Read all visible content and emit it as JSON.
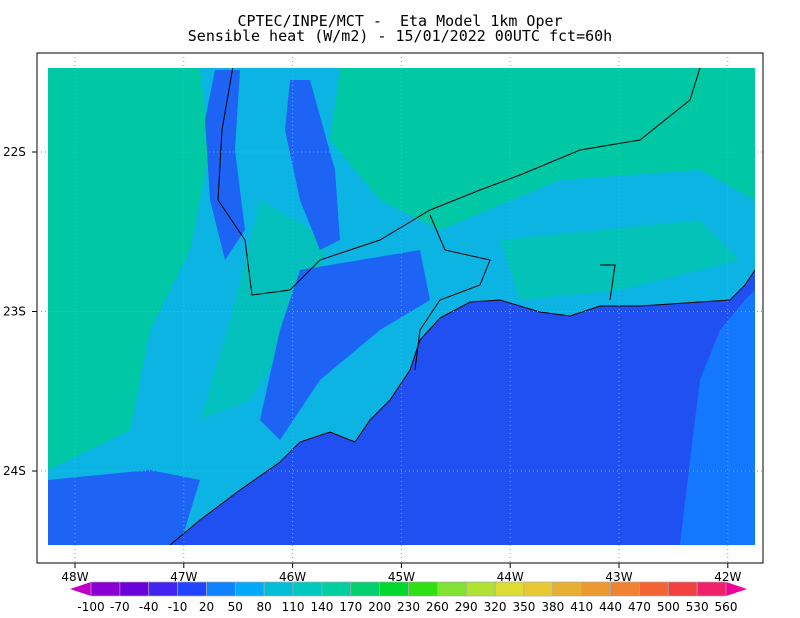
{
  "title": {
    "line1": "CPTEC/INPE/MCT -  Eta Model 1km Oper",
    "line2": "Sensible heat (W/m2) - 15/01/2022 00UTC fct=60h"
  },
  "map": {
    "x_ticks": [
      "48W",
      "47W",
      "46W",
      "45W",
      "44W",
      "43W",
      "42W"
    ],
    "y_ticks": [
      "22S",
      "23S",
      "24S"
    ],
    "colors": {
      "ocean": "#2150f2",
      "ocean_offshore": "#1478ff",
      "land_base": "#0cb4e4",
      "land_green": "#00c8a4",
      "valley": "#1e64f4",
      "coastline": "#000000"
    }
  },
  "colorbar": {
    "labels": [
      "-100",
      "-70",
      "-40",
      "-10",
      "20",
      "50",
      "80",
      "110",
      "140",
      "170",
      "200",
      "230",
      "260",
      "290",
      "320",
      "350",
      "380",
      "410",
      "440",
      "470",
      "500",
      "530",
      "560"
    ],
    "colors": [
      "#8a00d2",
      "#6c00da",
      "#4224f0",
      "#2044ff",
      "#1082ff",
      "#00aaf8",
      "#00bed8",
      "#00c8c0",
      "#00d0a0",
      "#00d070",
      "#00d830",
      "#30e012",
      "#80e232",
      "#b0e232",
      "#dcdc32",
      "#e8c832",
      "#e8b032",
      "#ea9a30",
      "#f08232",
      "#f26432",
      "#f24040",
      "#f0206a"
    ],
    "under_color": "#c000c8",
    "over_color": "#f00094"
  }
}
